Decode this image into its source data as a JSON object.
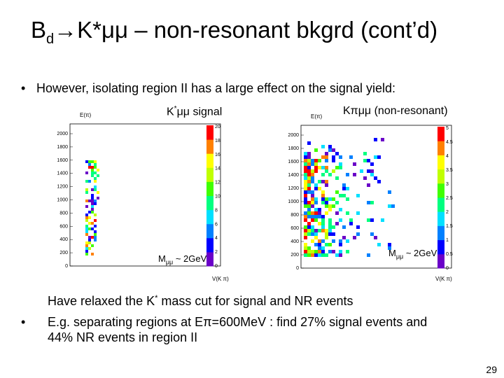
{
  "title": {
    "main_prefix": "B",
    "sub": "d",
    "main_suffix": "→K*μμ – non-resonant bkgrd (cont’d)"
  },
  "bullet1": "However, isolating region II has a large effect on the signal yield:",
  "plots": [
    {
      "label_prefix": "K",
      "label_sup": "*",
      "label_suffix": "μμ signal",
      "y_axis_title": "E(π)",
      "x_axis_title": "V(K π)",
      "y_ticks": [
        "0",
        "200",
        "400",
        "600",
        "800",
        "1000",
        "1200",
        "1400",
        "1600",
        "1800",
        "2000"
      ],
      "z_ticks": [
        "0",
        "2",
        "4",
        "6",
        "8",
        "10",
        "12",
        "14",
        "16",
        "18",
        "20"
      ],
      "mass_prefix": "M",
      "mass_sub": "μμ",
      "mass_suffix": " ~ 2GeV"
    },
    {
      "label_prefix": "Kπμμ (non-resonant)",
      "y_axis_title": "E(π)",
      "x_axis_title": "V(K π)",
      "y_ticks": [
        "0",
        "200",
        "400",
        "600",
        "800",
        "1000",
        "1200",
        "1400",
        "1600",
        "1800",
        "2000"
      ],
      "z_ticks": [
        "0",
        "0.5",
        "1",
        "1.5",
        "2",
        "2.5",
        "3",
        "3.5",
        "4",
        "4.5",
        "5"
      ],
      "mass_prefix": "M",
      "mass_sub": "μμ",
      "mass_suffix": " ~ 2GeV"
    }
  ],
  "note_prefix": "Have relaxed the K",
  "note_sup": "*",
  "note_suffix": " mass cut for signal and NR events",
  "bullet2_line1": "E.g. separating regions at Eπ=600MeV : find 27% signal events and",
  "bullet2_line2": "44% NR events in region II",
  "page_number": "29",
  "colors": {
    "palette": [
      "#6a00c8",
      "#0000ff",
      "#0080ff",
      "#00e0ff",
      "#00ff80",
      "#40ff00",
      "#c0ff00",
      "#ffff00",
      "#ff8000",
      "#ff0000"
    ]
  }
}
